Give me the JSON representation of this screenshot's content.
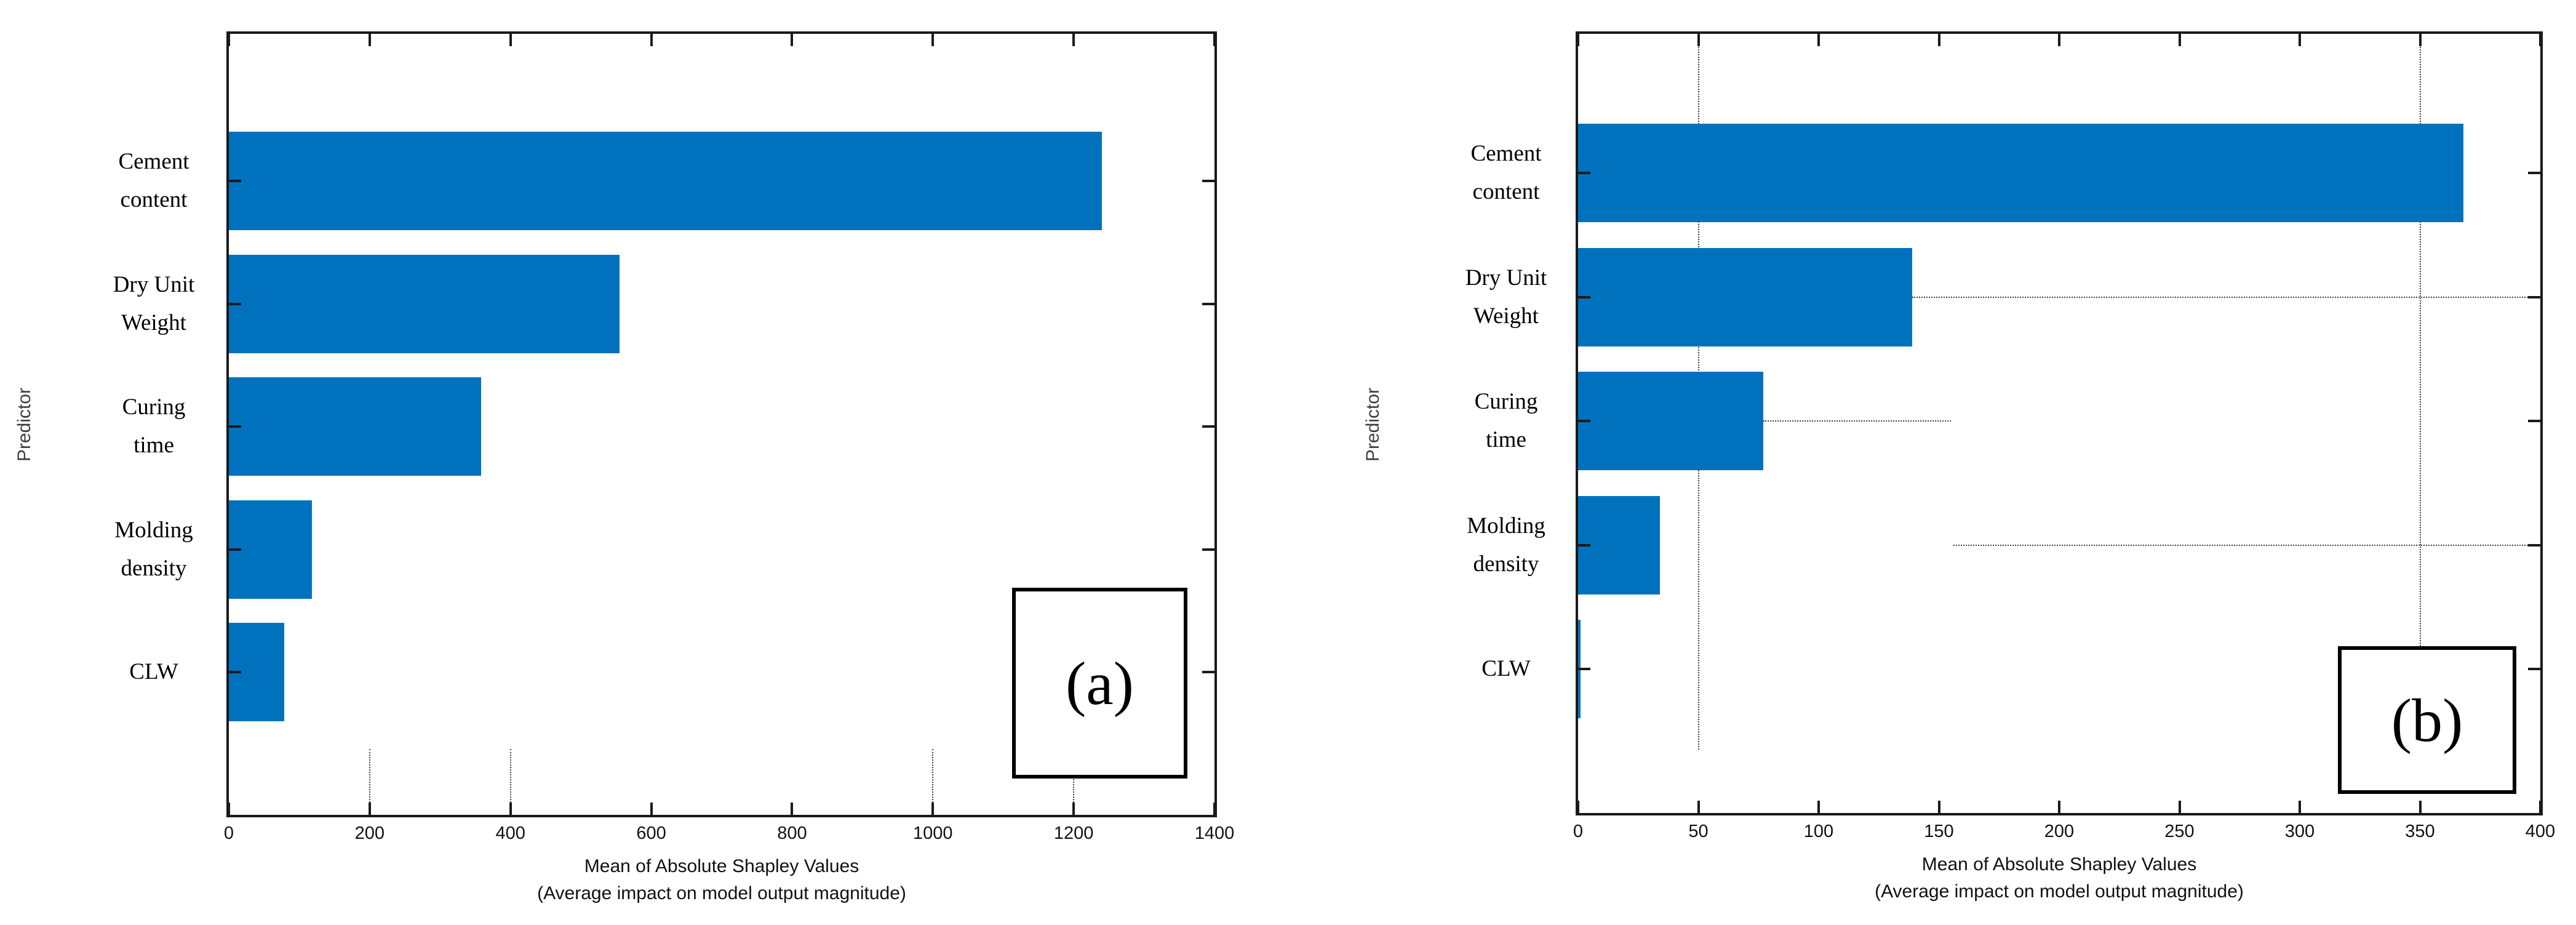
{
  "figure": {
    "background": "#ffffff",
    "bar_color": "#0072BD",
    "axis_color": "#1a1a1a"
  },
  "chart_data": [
    {
      "type": "bar",
      "orientation": "horizontal",
      "panel_label": "(a)",
      "title": "(a)",
      "categories": [
        "Cement\ncontent",
        "Dry Unit\nWeight",
        "Curing\ntime",
        "Molding\ndensity",
        "CLW"
      ],
      "values": [
        1240,
        555,
        358,
        118,
        79
      ],
      "xlim": [
        0,
        1400
      ],
      "xticks": [
        0,
        200,
        400,
        600,
        800,
        1000,
        1200,
        1400
      ],
      "xlabel_line1": "Mean of Absolute Shapley Values",
      "xlabel_line2": "(Average impact on model output magnitude)",
      "ylabel": "Predictor",
      "bar_color": "#0072BD",
      "legend": "none",
      "grid": "partial dotted vertical segments near bottom",
      "aux_vlines": [
        {
          "x": 200,
          "y1": 1162,
          "y2": 1277
        },
        {
          "x": 400,
          "y1": 1162,
          "y2": 1277
        },
        {
          "x": 1000,
          "y1": 1162,
          "y2": 1277
        },
        {
          "x": 1200,
          "y1": 1162,
          "y2": 1277
        }
      ],
      "aux_hlines": []
    },
    {
      "type": "bar",
      "orientation": "horizontal",
      "panel_label": "(b)",
      "title": "(b)",
      "categories": [
        "Cement\ncontent",
        "Dry Unit\nWeight",
        "Curing\ntime",
        "Molding\ndensity",
        "CLW"
      ],
      "values": [
        368,
        139,
        77,
        34,
        1
      ],
      "xlim": [
        0,
        400
      ],
      "xticks": [
        0,
        50,
        100,
        150,
        200,
        250,
        300,
        350,
        400
      ],
      "xlabel_line1": "Mean of Absolute Shapley Values",
      "xlabel_line2": "(Average impact on model output magnitude)",
      "ylabel": "Predictor",
      "bar_color": "#0072BD",
      "legend": "none",
      "grid": "dotted vertical lines at 50 and 350, dotted horizontal whisker lines",
      "aux_vlines": [
        {
          "x": 50,
          "y1": 0,
          "y2": 1163
        },
        {
          "x": 350,
          "y1": 0,
          "y2": 1163
        }
      ],
      "aux_hlines": [
        {
          "row": 1,
          "x1": 139,
          "x2": 400
        },
        {
          "row": 2,
          "x1": 77,
          "x2": 155
        },
        {
          "row": 3,
          "x1": 156,
          "x2": 400
        }
      ]
    }
  ]
}
